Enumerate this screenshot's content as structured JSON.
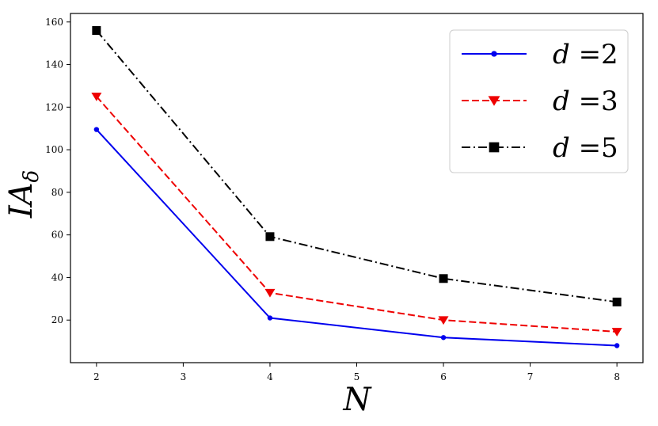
{
  "chart_data": {
    "type": "line",
    "x": [
      2,
      4,
      6,
      8
    ],
    "xlabel": "N",
    "ylabel_base": "IA",
    "ylabel_sub": "δ",
    "xlim": [
      1.7,
      8.3
    ],
    "ylim": [
      0,
      164
    ],
    "xticks": [
      2,
      3,
      4,
      5,
      6,
      7,
      8
    ],
    "yticks": [
      20,
      40,
      60,
      80,
      100,
      120,
      140,
      160
    ],
    "grid": false,
    "legend_position": "top-right",
    "series": [
      {
        "name": "d =2",
        "name_var": "d",
        "name_eq": " =2",
        "values": [
          109.5,
          21.0,
          11.8,
          8.0
        ],
        "color": "#0000ee",
        "linestyle": "solid",
        "marker": "circle"
      },
      {
        "name": "d =3",
        "name_var": "d",
        "name_eq": " =3",
        "values": [
          125.0,
          32.8,
          20.0,
          14.5
        ],
        "color": "#ee0000",
        "linestyle": "dashed",
        "marker": "triangle-down"
      },
      {
        "name": "d =5",
        "name_var": "d",
        "name_eq": " =5",
        "values": [
          156.0,
          59.2,
          39.5,
          28.5
        ],
        "color": "#000000",
        "linestyle": "dashdot",
        "marker": "square"
      }
    ]
  }
}
